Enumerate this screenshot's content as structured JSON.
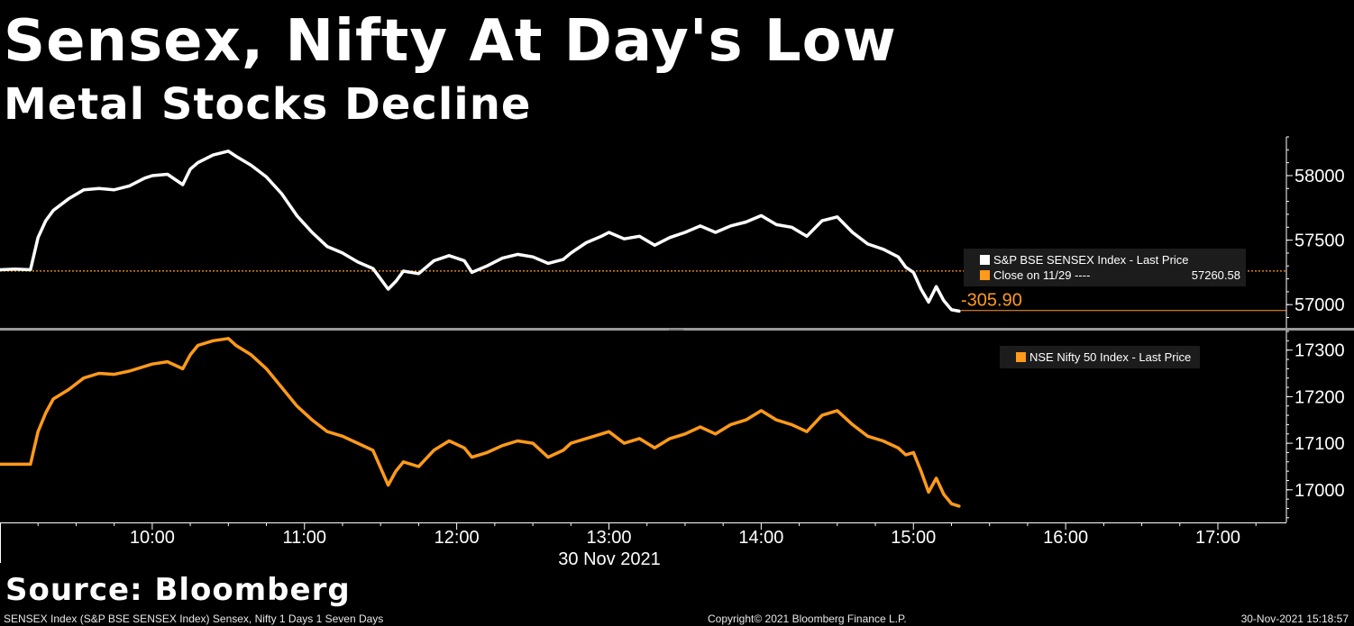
{
  "headline": "Sensex, Nifty At Day's Low",
  "subheadline": "Metal Stocks Decline",
  "source": "Source: Bloomberg",
  "footer": {
    "left": "SENSEX Index (S&P BSE SENSEX Index) Sensex, Nifty 1 Days 1 Seven Days",
    "center": "Copyright© 2021 Bloomberg Finance L.P.",
    "right": "30-Nov-2021 15:18:57"
  },
  "colors": {
    "background": "#000000",
    "sensex": "#ffffff",
    "nifty": "#ff9a1a",
    "close_line": "#ff9a1a",
    "legend_bg": "#1c1c1c"
  },
  "chart_data": [
    {
      "type": "line",
      "name": "sensex-panel",
      "legend": [
        {
          "label": "S&P BSE SENSEX Index - Last Price",
          "color": "#ffffff"
        },
        {
          "label": "Close on 11/29 ----",
          "value": "57260.58",
          "color": "#ff9a1a"
        }
      ],
      "change_label": "-305.90",
      "close_value": 57260.58,
      "last_value": 56954.68,
      "ylim": [
        56820,
        58300
      ],
      "yticks": [
        57000,
        57500,
        58000
      ],
      "ytick_labels": [
        "57000",
        "57500",
        "58000"
      ],
      "series": [
        {
          "name": "S&P BSE SENSEX Index - Last Price",
          "x": [
            9.0,
            9.1,
            9.2,
            9.25,
            9.3,
            9.35,
            9.45,
            9.55,
            9.65,
            9.75,
            9.85,
            9.95,
            10.0,
            10.1,
            10.2,
            10.25,
            10.3,
            10.4,
            10.5,
            10.55,
            10.65,
            10.75,
            10.85,
            10.95,
            11.05,
            11.15,
            11.25,
            11.35,
            11.45,
            11.55,
            11.6,
            11.65,
            11.75,
            11.85,
            11.95,
            12.05,
            12.1,
            12.2,
            12.3,
            12.4,
            12.5,
            12.6,
            12.7,
            12.75,
            12.85,
            12.95,
            13.0,
            13.1,
            13.2,
            13.3,
            13.4,
            13.5,
            13.6,
            13.7,
            13.8,
            13.9,
            14.0,
            14.1,
            14.2,
            14.3,
            14.4,
            14.5,
            14.6,
            14.7,
            14.8,
            14.9,
            14.95,
            15.0,
            15.05,
            15.1,
            15.15,
            15.2,
            15.25,
            15.3
          ],
          "y": [
            57270,
            57275,
            57270,
            57520,
            57650,
            57730,
            57820,
            57890,
            57900,
            57890,
            57920,
            57980,
            58000,
            58010,
            57930,
            58050,
            58100,
            58160,
            58190,
            58150,
            58080,
            57990,
            57860,
            57690,
            57560,
            57450,
            57400,
            57330,
            57280,
            57120,
            57180,
            57260,
            57240,
            57340,
            57380,
            57340,
            57250,
            57300,
            57360,
            57390,
            57370,
            57320,
            57350,
            57400,
            57480,
            57530,
            57560,
            57510,
            57530,
            57460,
            57520,
            57560,
            57610,
            57560,
            57610,
            57640,
            57690,
            57620,
            57600,
            57530,
            57650,
            57680,
            57560,
            57470,
            57430,
            57370,
            57290,
            57250,
            57120,
            57020,
            57140,
            57030,
            56960,
            56950
          ]
        }
      ]
    },
    {
      "type": "line",
      "name": "nifty-panel",
      "legend": [
        {
          "label": "NSE Nifty 50 Index - Last Price",
          "color": "#ff9a1a"
        }
      ],
      "ylim": [
        16930,
        17340
      ],
      "yticks": [
        17000,
        17100,
        17200,
        17300
      ],
      "ytick_labels": [
        "17000",
        "17100",
        "17200",
        "17300"
      ],
      "series": [
        {
          "name": "NSE Nifty 50 Index - Last Price",
          "x": [
            9.0,
            9.1,
            9.2,
            9.25,
            9.3,
            9.35,
            9.45,
            9.55,
            9.65,
            9.75,
            9.85,
            9.95,
            10.0,
            10.1,
            10.2,
            10.25,
            10.3,
            10.4,
            10.5,
            10.55,
            10.65,
            10.75,
            10.85,
            10.95,
            11.05,
            11.15,
            11.25,
            11.35,
            11.45,
            11.55,
            11.6,
            11.65,
            11.75,
            11.85,
            11.95,
            12.05,
            12.1,
            12.2,
            12.3,
            12.4,
            12.5,
            12.6,
            12.7,
            12.75,
            12.85,
            12.95,
            13.0,
            13.1,
            13.2,
            13.3,
            13.4,
            13.5,
            13.6,
            13.7,
            13.8,
            13.9,
            14.0,
            14.1,
            14.2,
            14.3,
            14.4,
            14.5,
            14.6,
            14.7,
            14.8,
            14.9,
            14.95,
            15.0,
            15.05,
            15.1,
            15.15,
            15.2,
            15.25,
            15.3
          ],
          "y": [
            17055,
            17055,
            17055,
            17125,
            17165,
            17195,
            17215,
            17240,
            17250,
            17248,
            17255,
            17265,
            17270,
            17275,
            17260,
            17290,
            17310,
            17320,
            17325,
            17310,
            17290,
            17260,
            17220,
            17180,
            17150,
            17125,
            17115,
            17100,
            17085,
            17010,
            17040,
            17060,
            17050,
            17085,
            17105,
            17090,
            17070,
            17080,
            17095,
            17105,
            17100,
            17070,
            17085,
            17100,
            17110,
            17120,
            17125,
            17100,
            17110,
            17090,
            17110,
            17120,
            17135,
            17120,
            17140,
            17150,
            17170,
            17150,
            17140,
            17125,
            17160,
            17170,
            17140,
            17115,
            17105,
            17090,
            17075,
            17080,
            17040,
            16995,
            17025,
            16990,
            16970,
            16965
          ]
        }
      ]
    }
  ],
  "x_axis": {
    "ticks": [
      10,
      11,
      12,
      13,
      14,
      15,
      16,
      17
    ],
    "tick_labels": [
      "10:00",
      "11:00",
      "12:00",
      "13:00",
      "14:00",
      "15:00",
      "16:00",
      "17:00"
    ],
    "xlim": [
      9.0,
      17.45
    ],
    "date_label": "30 Nov 2021"
  }
}
